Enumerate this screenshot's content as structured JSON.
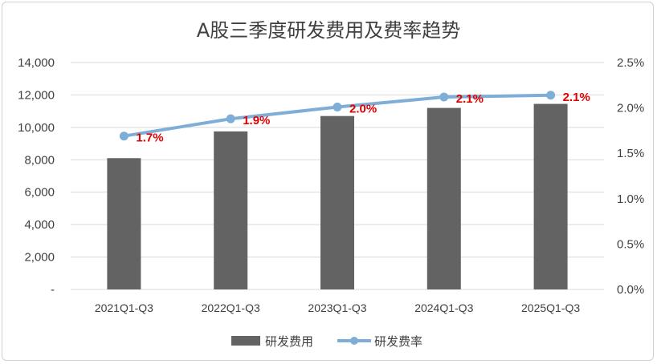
{
  "chart_data": {
    "type": "bar",
    "title": "A股三季度研发费用及费率趋势",
    "categories": [
      "2021Q1-Q3",
      "2022Q1-Q3",
      "2023Q1-Q3",
      "2024Q1-Q3",
      "2025Q1-Q3"
    ],
    "series": [
      {
        "name": "研发费用",
        "type": "bar",
        "axis": "left",
        "values": [
          8100,
          9750,
          10700,
          11200,
          11450
        ],
        "color": "#636363"
      },
      {
        "name": "研发费率",
        "type": "line",
        "axis": "right",
        "values": [
          1.69,
          1.88,
          2.01,
          2.12,
          2.14
        ],
        "labels": [
          "1.7%",
          "1.9%",
          "2.0%",
          "2.1%",
          "2.1%"
        ],
        "color": "#7eaed8",
        "label_color": "#e00000"
      }
    ],
    "y_left": {
      "ylim": [
        0,
        14000
      ],
      "ticks": [
        0,
        2000,
        4000,
        6000,
        8000,
        10000,
        12000,
        14000
      ],
      "tick_labels": [
        "-",
        "2,000",
        "4,000",
        "6,000",
        "8,000",
        "10,000",
        "12,000",
        "14,000"
      ]
    },
    "y_right": {
      "ylim": [
        0,
        2.5
      ],
      "ticks": [
        0,
        0.5,
        1.0,
        1.5,
        2.0,
        2.5
      ],
      "tick_labels": [
        "0.0%",
        "0.5%",
        "1.0%",
        "1.5%",
        "2.0%",
        "2.5%"
      ]
    },
    "grid": true,
    "legend": "bottom"
  }
}
